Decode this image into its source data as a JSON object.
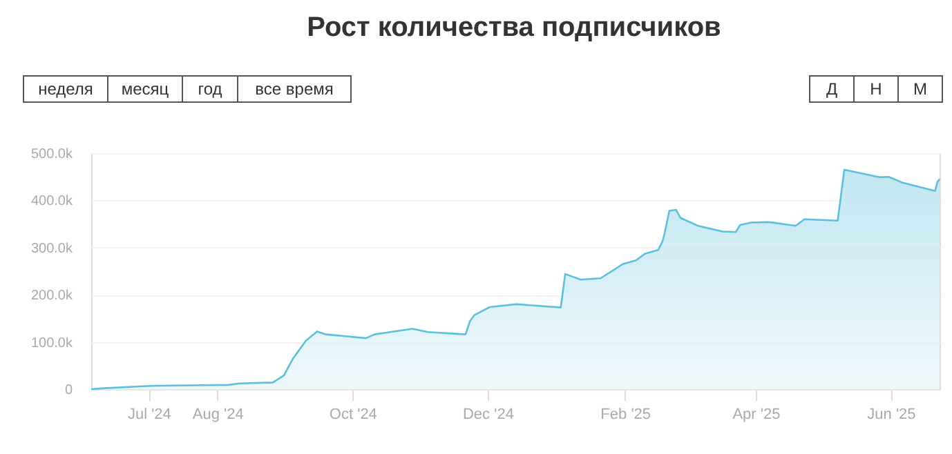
{
  "chart_data": {
    "type": "area",
    "title": "Рост количества подписчиков",
    "annotations": [
      "неделя",
      "месяц",
      "год",
      "все время",
      "Д",
      "Н",
      "М"
    ],
    "x": [
      "2024-06-05",
      "2024-06-11",
      "2024-07-02",
      "2024-08-06",
      "2024-08-11",
      "2024-08-26",
      "2024-08-31",
      "2024-09-04",
      "2024-09-10",
      "2024-09-15",
      "2024-09-19",
      "2024-10-07",
      "2024-10-11",
      "2024-10-18",
      "2024-10-28",
      "2024-11-04",
      "2024-11-21",
      "2024-11-23",
      "2024-11-25",
      "2024-12-02",
      "2024-12-14",
      "2025-01-03",
      "2025-01-05",
      "2025-01-12",
      "2025-01-21",
      "2025-01-25",
      "2025-01-31",
      "2025-02-06",
      "2025-02-10",
      "2025-02-16",
      "2025-02-18",
      "2025-02-19",
      "2025-02-21",
      "2025-02-24",
      "2025-02-26",
      "2025-03-06",
      "2025-03-17",
      "2025-03-23",
      "2025-03-25",
      "2025-03-30",
      "2025-04-07",
      "2025-04-19",
      "2025-04-23",
      "2025-05-08",
      "2025-05-11",
      "2025-05-27",
      "2025-05-31",
      "2025-06-06",
      "2025-06-21",
      "2025-06-22",
      "2025-06-23"
    ],
    "series": [
      {
        "color": "#5bc0de",
        "values": [
          0,
          2000,
          7000,
          9000,
          12000,
          14000,
          29000,
          64000,
          103000,
          122000,
          116000,
          108000,
          116000,
          121000,
          128000,
          121000,
          116000,
          144000,
          157000,
          174000,
          180000,
          173000,
          244000,
          232000,
          235000,
          247000,
          265000,
          273000,
          287000,
          295000,
          314000,
          333000,
          378000,
          380000,
          363000,
          346000,
          334000,
          333000,
          348000,
          353000,
          354000,
          346000,
          360000,
          357000,
          465000,
          449000,
          450000,
          438000,
          420000,
          439000,
          445000
        ]
      }
    ],
    "xlim": [
      "2024-06-05",
      "2025-06-23"
    ],
    "xticks": [
      {
        "value": "2024-07-01",
        "label": "Jul '24"
      },
      {
        "value": "2024-08-01",
        "label": "Aug '24"
      },
      {
        "value": "2024-10-01",
        "label": "Oct '24"
      },
      {
        "value": "2024-12-01",
        "label": "Dec '24"
      },
      {
        "value": "2025-02-01",
        "label": "Feb '25"
      },
      {
        "value": "2025-04-01",
        "label": "Apr '25"
      },
      {
        "value": "2025-06-01",
        "label": "Jun '25"
      }
    ],
    "ylim": [
      0,
      500000
    ],
    "yticks": [
      {
        "value": 0,
        "label": "0"
      },
      {
        "value": 100000,
        "label": "100.0k"
      },
      {
        "value": 200000,
        "label": "200.0k"
      },
      {
        "value": 300000,
        "label": "300.0k"
      },
      {
        "value": 400000,
        "label": "400.0k"
      },
      {
        "value": 500000,
        "label": "500.0k"
      }
    ],
    "grid": "y"
  }
}
